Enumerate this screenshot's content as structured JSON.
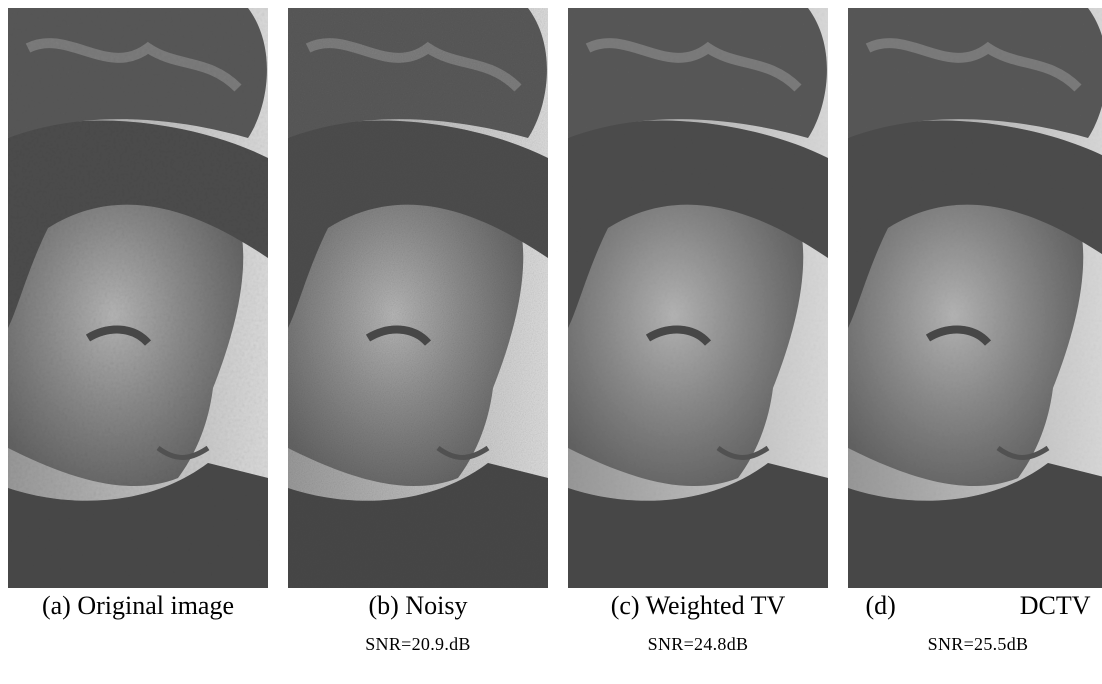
{
  "panels": [
    {
      "label": "(a)",
      "caption": "Original image"
    },
    {
      "label": "(b)",
      "caption": "Noisy",
      "snr": "SNR=20.9.dB"
    },
    {
      "label": "(c)",
      "caption": "Weighted TV",
      "snr": "SNR=24.8dB"
    },
    {
      "label": "(d)",
      "caption": "DCTV",
      "snr": "SNR=25.5dB"
    }
  ]
}
